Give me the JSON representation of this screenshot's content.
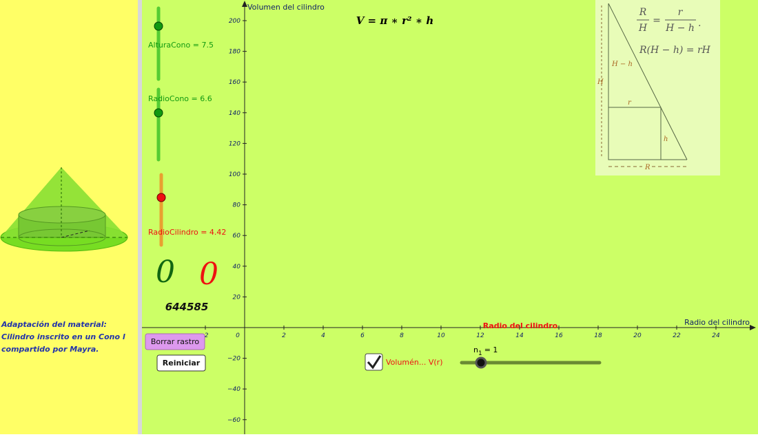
{
  "left_panel": {
    "caption": [
      "Adaptación del material:",
      "Cilindro inscrito en un Cono  l",
      "compartido por Mayra."
    ]
  },
  "sliders": [
    {
      "label": "AlturaCono = 7.5"
    },
    {
      "label": "RadioCono = 6.6"
    },
    {
      "label": "RadioCilindro = 4.42"
    },
    {
      "label": "n",
      "subscript": "1",
      "value": "= 1"
    }
  ],
  "counters": {
    "green": "0",
    "red": "0",
    "number": "644585"
  },
  "buttons": {
    "clear": "Borrar rastro",
    "reset": "Reiniciar"
  },
  "checkbox": {
    "label": "Volumén... V(r)"
  },
  "axes": {
    "y_label": "Volumen del cilindro",
    "x_label": "Radio del cilindro",
    "x_label_center": "Radio del cilindro",
    "xticks": [
      -2,
      0,
      2,
      4,
      6,
      8,
      10,
      12,
      14,
      16,
      18,
      20,
      22,
      24
    ],
    "yticks": [
      {
        "value": -60,
        "label": "−60"
      },
      {
        "value": -40,
        "label": "−40"
      },
      {
        "value": -20,
        "label": "−20"
      },
      20,
      40,
      60,
      80,
      100,
      120,
      140,
      160,
      180,
      200
    ]
  },
  "formula": "V = π ∗ r² ∗ h",
  "inset": {
    "ratio_left_num": "R",
    "ratio_left_den": "H",
    "ratio_eq": "=",
    "ratio_right_num": "r",
    "ratio_right_den": "H − h",
    "ratio_end": ".",
    "product": "R(H − h) = rH",
    "H_minus_h": "H − h",
    "H": "H",
    "r": "r",
    "h": "h",
    "R": "R"
  }
}
